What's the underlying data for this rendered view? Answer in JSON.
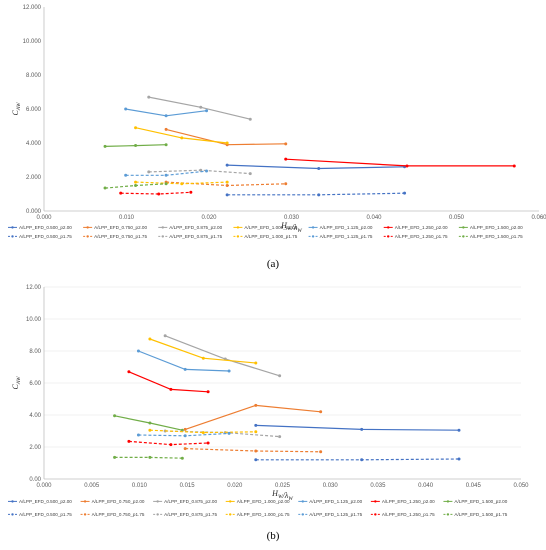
{
  "colors": {
    "blue": "#4472C4",
    "orange": "#ED7D31",
    "gray": "#A5A5A5",
    "yellow": "#FFC000",
    "lightblue": "#5B9BD5",
    "red": "#FF0000",
    "green": "#70AD47"
  },
  "chart_data": [
    {
      "type": "line",
      "panel_label": "(a)",
      "xlabel": "H_W/λ_W",
      "ylabel": "C_AW",
      "xlim": [
        0,
        0.06
      ],
      "ylim": [
        0,
        12
      ],
      "xticks": [
        "0.000",
        "0.010",
        "0.020",
        "0.030",
        "0.040",
        "0.050",
        "0.060"
      ],
      "yticks": [
        "0.000",
        "2.000",
        "4.000",
        "6.000",
        "8.000",
        "10.000",
        "12.000"
      ],
      "grid": false,
      "legend_placement": "bottom",
      "series": [
        {
          "name": "A/LPP_EFD_0.500_p2.00",
          "color": "blue",
          "dashed": false,
          "x": [
            0.0222,
            0.0333,
            0.0437
          ],
          "y": [
            2.7,
            2.5,
            2.6
          ]
        },
        {
          "name": "A/LPP_EFD_0.750_p2.00",
          "color": "orange",
          "dashed": false,
          "x": [
            0.0148,
            0.0222,
            0.0293
          ],
          "y": [
            4.8,
            3.9,
            3.95
          ]
        },
        {
          "name": "A/LPP_EFD_0.875_p2.00",
          "color": "gray",
          "dashed": false,
          "x": [
            0.0127,
            0.019,
            0.025
          ],
          "y": [
            6.7,
            6.1,
            5.4
          ]
        },
        {
          "name": "A/LPP_EFD_1.000_p2.00",
          "color": "yellow",
          "dashed": false,
          "x": [
            0.0111,
            0.0167,
            0.0222
          ],
          "y": [
            4.9,
            4.3,
            4.0
          ]
        },
        {
          "name": "A/LPP_EFD_1.125_p2.00",
          "color": "lightblue",
          "dashed": false,
          "x": [
            0.0099,
            0.0148,
            0.0197
          ],
          "y": [
            6.0,
            5.6,
            5.9
          ]
        },
        {
          "name": "A/LPP_EFD_1.250_p2.00",
          "color": "red",
          "dashed": false,
          "x": [
            0.0293,
            0.044,
            0.057
          ],
          "y": [
            3.05,
            2.65,
            2.65
          ]
        },
        {
          "name": "A/LPP_EFD_1.500_p2.00",
          "color": "green",
          "dashed": false,
          "x": [
            0.0074,
            0.0111,
            0.0148
          ],
          "y": [
            3.8,
            3.85,
            3.9
          ]
        },
        {
          "name": "A/LPP_EFD_0.500_p1.75",
          "color": "blue",
          "dashed": true,
          "x": [
            0.0222,
            0.0333,
            0.0437
          ],
          "y": [
            0.95,
            0.95,
            1.05
          ]
        },
        {
          "name": "A/LPP_EFD_0.750_p1.75",
          "color": "orange",
          "dashed": true,
          "x": [
            0.0148,
            0.0222,
            0.0293
          ],
          "y": [
            1.7,
            1.5,
            1.6
          ]
        },
        {
          "name": "A/LPP_EFD_0.875_p1.75",
          "color": "gray",
          "dashed": true,
          "x": [
            0.0127,
            0.019,
            0.025
          ],
          "y": [
            2.3,
            2.4,
            2.2
          ]
        },
        {
          "name": "A/LPP_EFD_1.000_p1.75",
          "color": "yellow",
          "dashed": true,
          "x": [
            0.0111,
            0.0167,
            0.0222
          ],
          "y": [
            1.7,
            1.6,
            1.7
          ]
        },
        {
          "name": "A/LPP_EFD_1.125_p1.75",
          "color": "lightblue",
          "dashed": true,
          "x": [
            0.0099,
            0.0148,
            0.0197
          ],
          "y": [
            2.1,
            2.1,
            2.35
          ]
        },
        {
          "name": "A/LPP_EFD_1.250_p1.75",
          "color": "red",
          "dashed": true,
          "x": [
            0.0093,
            0.0139,
            0.0178
          ],
          "y": [
            1.05,
            1.0,
            1.1
          ]
        },
        {
          "name": "A/LPP_EFD_1.500_p1.75",
          "color": "green",
          "dashed": true,
          "x": [
            0.0074,
            0.0111,
            0.0148
          ],
          "y": [
            1.35,
            1.5,
            1.6
          ]
        }
      ]
    },
    {
      "type": "line",
      "panel_label": "(b)",
      "xlabel": "H_W/λ_W",
      "ylabel": "C_AW",
      "xlim": [
        0,
        0.05
      ],
      "ylim": [
        0,
        12
      ],
      "xticks": [
        "0.000",
        "0.005",
        "0.010",
        "0.015",
        "0.020",
        "0.025",
        "0.030",
        "0.035",
        "0.040",
        "0.045",
        "0.050"
      ],
      "yticks": [
        "0.00",
        "2.00",
        "4.00",
        "6.00",
        "8.00",
        "10.00",
        "12.00"
      ],
      "grid": true,
      "legend_placement": "bottom",
      "series": [
        {
          "name": "A/LPP_EFD_0.500_p2.00",
          "color": "blue",
          "dashed": false,
          "x": [
            0.0222,
            0.0333,
            0.0435
          ],
          "y": [
            3.35,
            3.1,
            3.05
          ]
        },
        {
          "name": "A/LPP_EFD_0.750_p2.00",
          "color": "orange",
          "dashed": false,
          "x": [
            0.0148,
            0.0222,
            0.029
          ],
          "y": [
            3.1,
            4.6,
            4.2
          ]
        },
        {
          "name": "A/LPP_EFD_0.875_p2.00",
          "color": "gray",
          "dashed": false,
          "x": [
            0.0127,
            0.019,
            0.0247
          ],
          "y": [
            8.95,
            7.5,
            6.45
          ]
        },
        {
          "name": "A/LPP_EFD_1.000_p2.00",
          "color": "yellow",
          "dashed": false,
          "x": [
            0.0111,
            0.0167,
            0.0222
          ],
          "y": [
            8.75,
            7.55,
            7.25
          ]
        },
        {
          "name": "A/LPP_EFD_1.125_p2.00",
          "color": "lightblue",
          "dashed": false,
          "x": [
            0.0099,
            0.0148,
            0.0194
          ],
          "y": [
            8.0,
            6.85,
            6.75
          ]
        },
        {
          "name": "A/LPP_EFD_1.250_p2.00",
          "color": "red",
          "dashed": false,
          "x": [
            0.0089,
            0.0133,
            0.0172
          ],
          "y": [
            6.7,
            5.6,
            5.45
          ]
        },
        {
          "name": "A/LPP_EFD_1.500_p2.00",
          "color": "green",
          "dashed": false,
          "x": [
            0.0074,
            0.0111,
            0.0145
          ],
          "y": [
            3.95,
            3.5,
            3.05
          ]
        },
        {
          "name": "A/LPP_EFD_0.500_p1.75",
          "color": "blue",
          "dashed": true,
          "x": [
            0.0222,
            0.0333,
            0.0435
          ],
          "y": [
            1.2,
            1.2,
            1.25
          ]
        },
        {
          "name": "A/LPP_EFD_0.750_p1.75",
          "color": "orange",
          "dashed": true,
          "x": [
            0.0148,
            0.0222,
            0.029
          ],
          "y": [
            1.9,
            1.75,
            1.7
          ]
        },
        {
          "name": "A/LPP_EFD_0.875_p1.75",
          "color": "gray",
          "dashed": true,
          "x": [
            0.0127,
            0.019,
            0.0247
          ],
          "y": [
            3.0,
            2.9,
            2.65
          ]
        },
        {
          "name": "A/LPP_EFD_1.000_p1.75",
          "color": "yellow",
          "dashed": true,
          "x": [
            0.0111,
            0.0167,
            0.0222
          ],
          "y": [
            3.05,
            2.9,
            2.95
          ]
        },
        {
          "name": "A/LPP_EFD_1.125_p1.75",
          "color": "lightblue",
          "dashed": true,
          "x": [
            0.0099,
            0.0148,
            0.0194
          ],
          "y": [
            2.75,
            2.7,
            2.85
          ]
        },
        {
          "name": "A/LPP_EFD_1.250_p1.75",
          "color": "red",
          "dashed": true,
          "x": [
            0.0089,
            0.0133,
            0.0172
          ],
          "y": [
            2.35,
            2.15,
            2.25
          ]
        },
        {
          "name": "A/LPP_EFD_1.500_p1.75",
          "color": "green",
          "dashed": true,
          "x": [
            0.0074,
            0.0111,
            0.0145
          ],
          "y": [
            1.35,
            1.35,
            1.3
          ]
        }
      ]
    }
  ]
}
